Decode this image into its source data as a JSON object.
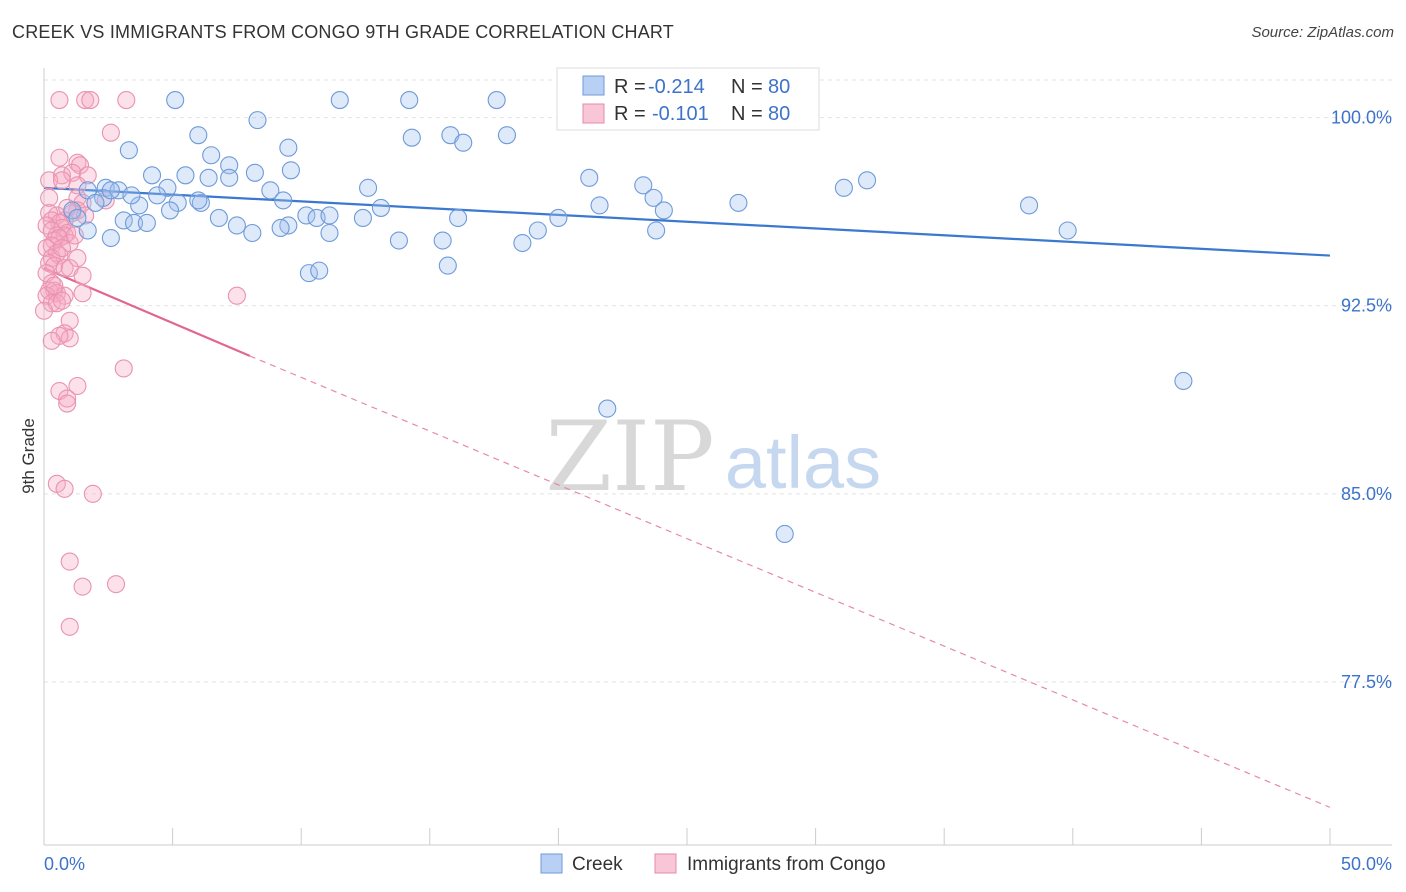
{
  "header": {
    "title": "CREEK VS IMMIGRANTS FROM CONGO 9TH GRADE CORRELATION CHART",
    "source": "Source: ZipAtlas.com"
  },
  "watermark": {
    "zip": "ZIP",
    "atlas": "atlas"
  },
  "colors": {
    "creek": "#5b8fd6",
    "creek_fill": "#a9c7f0",
    "congo": "#e8739b",
    "congo_fill": "#f5b7cc",
    "axis_label": "#3d73c9"
  },
  "stats": {
    "creek": {
      "r_label": "R =",
      "r_value": "-0.214",
      "n_label": "N =",
      "n_value": "80"
    },
    "congo": {
      "r_label": "R =",
      "r_value": "-0.101",
      "n_label": "N =",
      "n_value": "80"
    }
  },
  "chart_data": {
    "type": "scatter",
    "title": "CREEK VS IMMIGRANTS FROM CONGO 9TH GRADE CORRELATION CHART",
    "xlabel": "",
    "ylabel": "9th Grade",
    "xlim": [
      0,
      50
    ],
    "ylim": [
      71,
      101.5
    ],
    "x_tick_labels": [
      "0.0%",
      "50.0%"
    ],
    "y_ticks": [
      100,
      92.5,
      85,
      77.5
    ],
    "y_tick_labels": [
      "100.0%",
      "92.5%",
      "85.0%",
      "77.5%"
    ],
    "grid": true,
    "legend": "bottom-center",
    "series": [
      {
        "name": "Creek",
        "trend": {
          "x": [
            0,
            50
          ],
          "y": [
            97.2,
            94.5
          ],
          "style": "solid"
        },
        "points": [
          [
            5.1,
            100.7
          ],
          [
            11.5,
            100.7
          ],
          [
            14.2,
            100.7
          ],
          [
            17.6,
            100.7
          ],
          [
            22.0,
            100.7
          ],
          [
            22.5,
            100.7
          ],
          [
            6.0,
            99.3
          ],
          [
            8.3,
            99.9
          ],
          [
            9.5,
            98.8
          ],
          [
            14.3,
            99.2
          ],
          [
            15.8,
            99.3
          ],
          [
            16.3,
            99.0
          ],
          [
            18.0,
            99.3
          ],
          [
            3.3,
            98.7
          ],
          [
            6.5,
            98.5
          ],
          [
            7.2,
            98.1
          ],
          [
            9.6,
            97.9
          ],
          [
            4.2,
            97.7
          ],
          [
            5.5,
            97.7
          ],
          [
            6.4,
            97.6
          ],
          [
            8.2,
            97.8
          ],
          [
            7.2,
            97.6
          ],
          [
            4.8,
            97.2
          ],
          [
            2.4,
            97.2
          ],
          [
            1.7,
            97.1
          ],
          [
            2.9,
            97.1
          ],
          [
            2.3,
            96.8
          ],
          [
            4.4,
            96.9
          ],
          [
            5.2,
            96.6
          ],
          [
            8.8,
            97.1
          ],
          [
            9.3,
            96.7
          ],
          [
            12.6,
            97.2
          ],
          [
            13.1,
            96.4
          ],
          [
            2.0,
            96.6
          ],
          [
            3.7,
            96.5
          ],
          [
            6.1,
            96.6
          ],
          [
            4.9,
            96.3
          ],
          [
            1.1,
            96.3
          ],
          [
            3.1,
            95.9
          ],
          [
            3.5,
            95.8
          ],
          [
            4.0,
            95.8
          ],
          [
            6.8,
            96.0
          ],
          [
            7.5,
            95.7
          ],
          [
            9.5,
            95.7
          ],
          [
            10.2,
            96.1
          ],
          [
            10.6,
            96.0
          ],
          [
            8.1,
            95.4
          ],
          [
            11.1,
            95.4
          ],
          [
            1.7,
            95.5
          ],
          [
            2.6,
            95.2
          ],
          [
            13.8,
            95.1
          ],
          [
            15.5,
            95.1
          ],
          [
            18.6,
            95.0
          ],
          [
            19.2,
            95.5
          ],
          [
            15.7,
            94.1
          ],
          [
            10.3,
            93.8
          ],
          [
            10.7,
            93.9
          ],
          [
            21.2,
            97.6
          ],
          [
            23.3,
            97.3
          ],
          [
            23.7,
            96.8
          ],
          [
            21.6,
            96.5
          ],
          [
            23.8,
            95.5
          ],
          [
            27.0,
            96.6
          ],
          [
            31.1,
            97.2
          ],
          [
            32.0,
            97.5
          ],
          [
            38.3,
            96.5
          ],
          [
            39.8,
            95.5
          ],
          [
            44.3,
            89.5
          ],
          [
            21.9,
            88.4
          ],
          [
            28.8,
            83.4
          ],
          [
            2.6,
            97.1
          ],
          [
            3.4,
            96.9
          ],
          [
            1.3,
            96.0
          ],
          [
            6.0,
            96.7
          ],
          [
            9.2,
            95.6
          ],
          [
            11.1,
            96.1
          ],
          [
            12.4,
            96.0
          ],
          [
            16.1,
            96.0
          ],
          [
            24.1,
            96.3
          ],
          [
            20.0,
            96.0
          ]
        ]
      },
      {
        "name": "Immigrants from Congo",
        "trend": {
          "x": [
            0,
            8
          ],
          "y": [
            94.0,
            90.5
          ],
          "style": "solid",
          "extended_x": [
            8,
            50
          ],
          "extended_y": [
            90.5,
            72.5
          ],
          "extended_style": "dashed"
        },
        "points": [
          [
            0.6,
            100.7
          ],
          [
            1.6,
            100.7
          ],
          [
            1.8,
            100.7
          ],
          [
            3.2,
            100.7
          ],
          [
            2.6,
            99.4
          ],
          [
            0.6,
            98.4
          ],
          [
            1.3,
            98.2
          ],
          [
            1.4,
            98.1
          ],
          [
            0.7,
            97.7
          ],
          [
            1.1,
            97.8
          ],
          [
            1.7,
            97.7
          ],
          [
            0.2,
            97.5
          ],
          [
            0.7,
            97.5
          ],
          [
            1.3,
            97.3
          ],
          [
            1.3,
            96.8
          ],
          [
            1.5,
            96.6
          ],
          [
            2.4,
            96.7
          ],
          [
            1.3,
            96.3
          ],
          [
            0.5,
            96.1
          ],
          [
            1.1,
            96.2
          ],
          [
            1.6,
            96.1
          ],
          [
            0.2,
            96.2
          ],
          [
            0.3,
            95.9
          ],
          [
            0.8,
            95.9
          ],
          [
            0.6,
            95.8
          ],
          [
            0.1,
            95.7
          ],
          [
            0.7,
            95.6
          ],
          [
            0.3,
            95.5
          ],
          [
            0.9,
            95.4
          ],
          [
            0.5,
            95.3
          ],
          [
            0.8,
            95.3
          ],
          [
            0.4,
            95.1
          ],
          [
            0.6,
            95.2
          ],
          [
            1.0,
            95.0
          ],
          [
            0.3,
            94.9
          ],
          [
            0.1,
            94.8
          ],
          [
            0.6,
            94.5
          ],
          [
            0.5,
            94.6
          ],
          [
            0.3,
            94.4
          ],
          [
            1.3,
            94.4
          ],
          [
            0.2,
            94.2
          ],
          [
            0.4,
            94.1
          ],
          [
            0.8,
            94.0
          ],
          [
            1.0,
            94.0
          ],
          [
            1.5,
            93.7
          ],
          [
            0.1,
            93.8
          ],
          [
            0.3,
            93.4
          ],
          [
            0.2,
            93.1
          ],
          [
            0.4,
            93.1
          ],
          [
            0.5,
            93.0
          ],
          [
            0.1,
            92.9
          ],
          [
            0.8,
            92.9
          ],
          [
            1.5,
            93.0
          ],
          [
            0.3,
            92.6
          ],
          [
            0.5,
            92.6
          ],
          [
            0.7,
            92.7
          ],
          [
            7.5,
            92.9
          ],
          [
            0.0,
            92.3
          ],
          [
            1.0,
            91.9
          ],
          [
            0.8,
            91.4
          ],
          [
            1.0,
            91.2
          ],
          [
            0.6,
            91.3
          ],
          [
            0.3,
            91.1
          ],
          [
            3.1,
            90.0
          ],
          [
            1.3,
            89.3
          ],
          [
            0.6,
            89.1
          ],
          [
            0.9,
            88.8
          ],
          [
            0.9,
            88.6
          ],
          [
            0.5,
            85.4
          ],
          [
            0.8,
            85.2
          ],
          [
            1.9,
            85.0
          ],
          [
            1.0,
            82.3
          ],
          [
            1.5,
            81.3
          ],
          [
            2.8,
            81.4
          ],
          [
            1.0,
            79.7
          ],
          [
            0.4,
            93.3
          ],
          [
            0.9,
            96.4
          ],
          [
            1.2,
            95.3
          ],
          [
            0.7,
            94.8
          ],
          [
            0.2,
            96.8
          ]
        ]
      }
    ]
  },
  "legend": {
    "creek_label": "Creek",
    "congo_label": "Immigrants from Congo"
  }
}
